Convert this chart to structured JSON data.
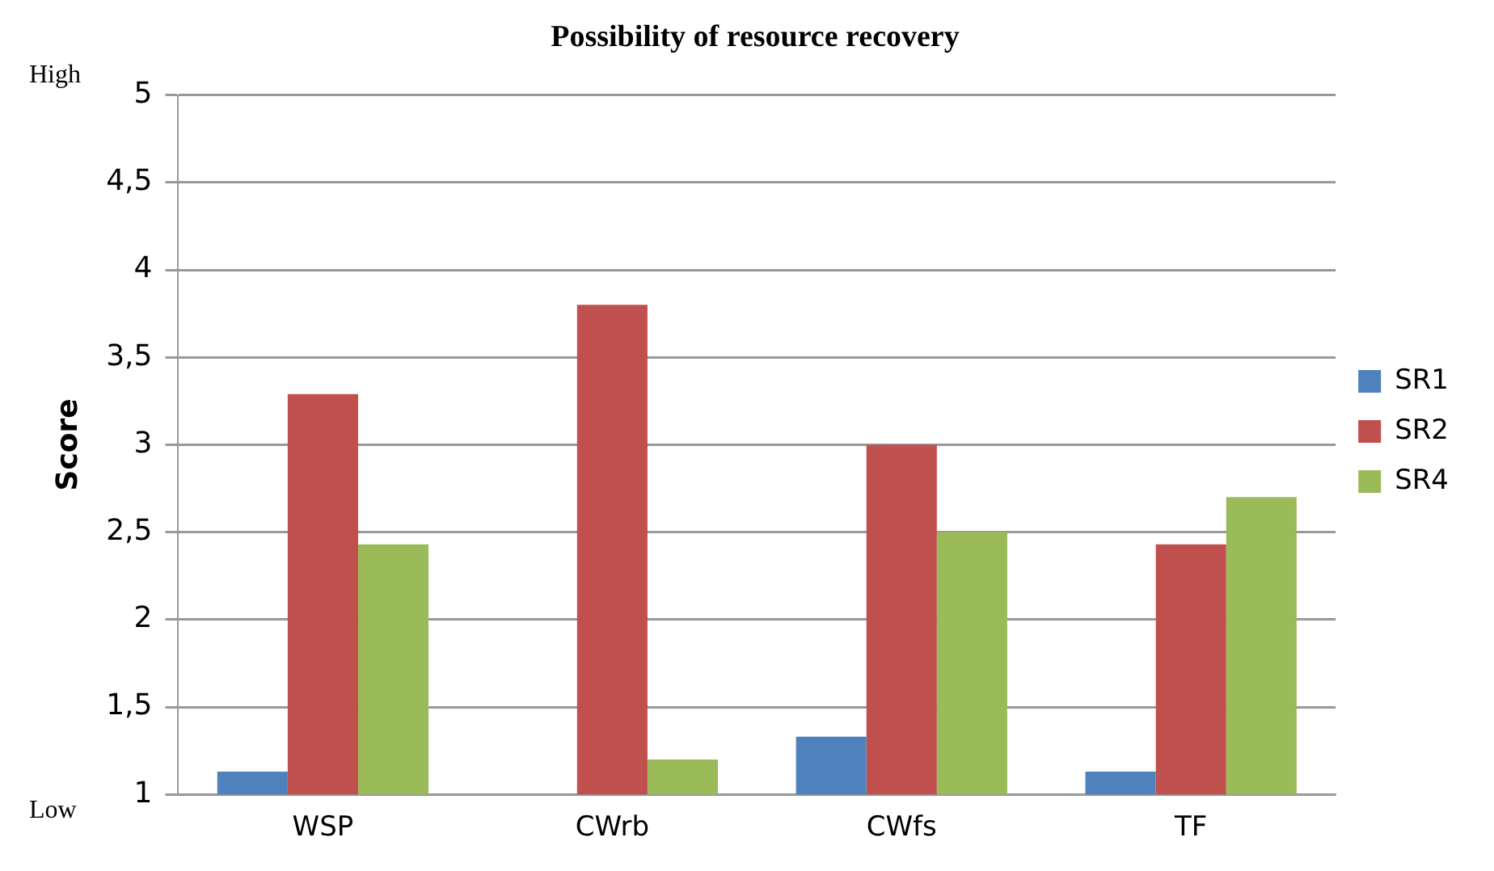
{
  "chart_data": {
    "type": "bar",
    "title": "Possibility of resource recovery",
    "ylabel": "Score",
    "annotations": [
      "High",
      "Low"
    ],
    "categories": [
      "WSP",
      "CWrb",
      "CWfs",
      "TF"
    ],
    "series": [
      {
        "name": "SR1",
        "color": "#4f81bd",
        "values": [
          1.13,
          null,
          1.33,
          1.13
        ]
      },
      {
        "name": "SR2",
        "color": "#c0504d",
        "values": [
          3.29,
          3.8,
          3.0,
          2.43
        ]
      },
      {
        "name": "SR4",
        "color": "#9bbb59",
        "values": [
          2.43,
          1.2,
          2.5,
          2.7
        ]
      }
    ],
    "ylim": [
      1,
      5
    ],
    "yticks": [
      1,
      {
        "value": 1.5,
        "label": "1,5"
      },
      2,
      {
        "value": 2.5,
        "label": "2,5"
      },
      3,
      {
        "value": 3.5,
        "label": "3,5"
      },
      4,
      {
        "value": 4.5,
        "label": "4,5"
      },
      5
    ],
    "grid": "y",
    "legend": "right"
  }
}
